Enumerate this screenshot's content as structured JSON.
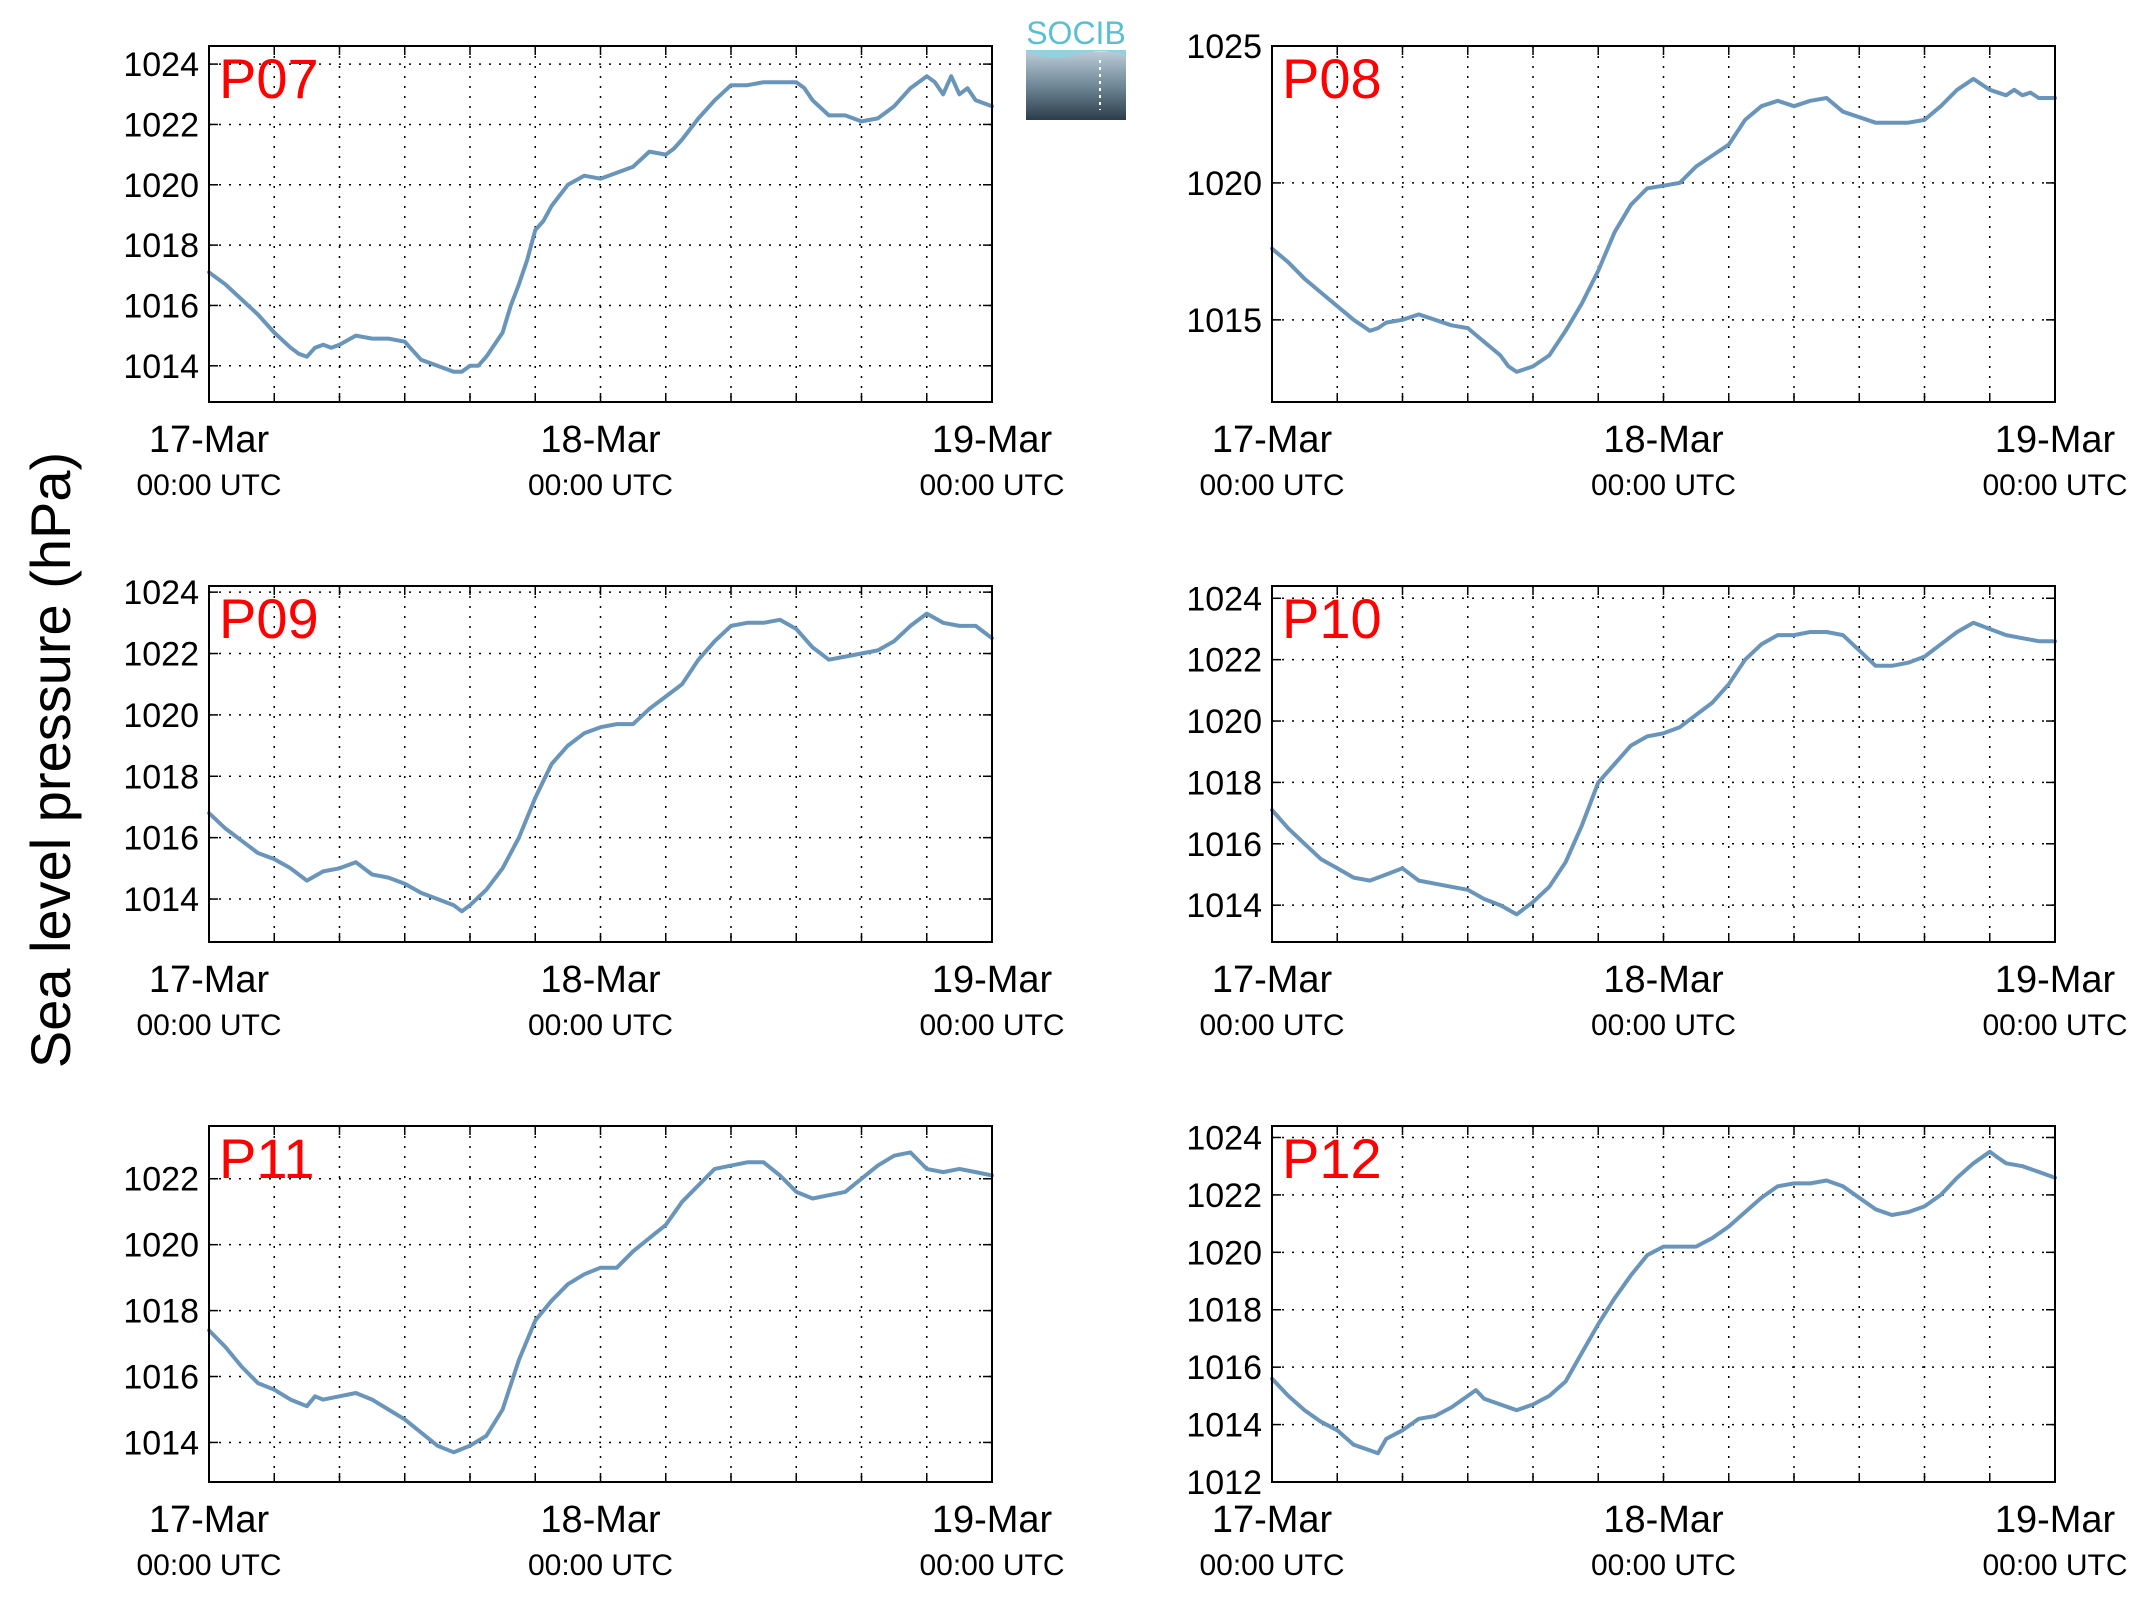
{
  "figure": {
    "ylabel": "Sea level pressure (hPa)",
    "logo_text": "SOCIB",
    "colors": {
      "line": "#6a95bb",
      "panel_title": "#ff0000",
      "axis": "#000000",
      "grid": "#000000",
      "background": "#ffffff"
    }
  },
  "chart_data": [
    {
      "type": "line",
      "title": "P07",
      "x_ticks": [
        {
          "x": 0,
          "date": "17-Mar",
          "time": "00:00 UTC"
        },
        {
          "x": 24,
          "date": "18-Mar",
          "time": "00:00 UTC"
        },
        {
          "x": 48,
          "date": "19-Mar",
          "time": "00:00 UTC"
        }
      ],
      "xlim": [
        0,
        48
      ],
      "ylim": [
        1012.8,
        1024.6
      ],
      "yticks": [
        1014,
        1016,
        1018,
        1020,
        1022,
        1024
      ],
      "grid": true,
      "series": [
        {
          "x": [
            0,
            1,
            2,
            3,
            4,
            5,
            5.5,
            6,
            6.5,
            7,
            7.5,
            8,
            9,
            10,
            11,
            12,
            13,
            14,
            15,
            15.5,
            16,
            16.5,
            17,
            18,
            18.5,
            19,
            19.5,
            20,
            20.5,
            21,
            22,
            23,
            24,
            25,
            26,
            27,
            28,
            28.5,
            29,
            30,
            31,
            32,
            33,
            34,
            35,
            36,
            36.5,
            37,
            38,
            39,
            40,
            41,
            42,
            43,
            44,
            44.5,
            45,
            45.5,
            46,
            46.5,
            47,
            48
          ],
          "y": [
            1017.1,
            1016.7,
            1016.2,
            1015.7,
            1015.1,
            1014.6,
            1014.4,
            1014.3,
            1014.6,
            1014.7,
            1014.6,
            1014.7,
            1015.0,
            1014.9,
            1014.9,
            1014.8,
            1014.2,
            1014.0,
            1013.8,
            1013.8,
            1014.0,
            1014.0,
            1014.3,
            1015.1,
            1016.0,
            1016.7,
            1017.5,
            1018.5,
            1018.8,
            1019.3,
            1020.0,
            1020.3,
            1020.2,
            1020.4,
            1020.6,
            1021.1,
            1021.0,
            1021.2,
            1021.5,
            1022.2,
            1022.8,
            1023.3,
            1023.3,
            1023.4,
            1023.4,
            1023.4,
            1023.2,
            1022.8,
            1022.3,
            1022.3,
            1022.1,
            1022.2,
            1022.6,
            1023.2,
            1023.6,
            1023.4,
            1023.0,
            1023.6,
            1023.0,
            1023.2,
            1022.8,
            1022.6
          ]
        }
      ]
    },
    {
      "type": "line",
      "title": "P08",
      "x_ticks": [
        {
          "x": 0,
          "date": "17-Mar",
          "time": "00:00 UTC"
        },
        {
          "x": 24,
          "date": "18-Mar",
          "time": "00:00 UTC"
        },
        {
          "x": 48,
          "date": "19-Mar",
          "time": "00:00 UTC"
        }
      ],
      "xlim": [
        0,
        48
      ],
      "ylim": [
        1012,
        1025
      ],
      "yticks": [
        1015,
        1020,
        1025
      ],
      "grid": true,
      "series": [
        {
          "x": [
            0,
            1,
            2,
            3,
            4,
            5,
            6,
            6.5,
            7,
            8,
            9,
            10,
            11,
            12,
            13,
            14,
            14.5,
            15,
            16,
            17,
            18,
            18.5,
            19,
            20,
            21,
            22,
            23,
            24,
            25,
            26,
            27,
            28,
            29,
            30,
            31,
            32,
            33,
            34,
            35,
            36,
            37,
            38,
            39,
            40,
            41,
            42,
            43,
            44,
            45,
            45.5,
            46,
            46.5,
            47,
            48
          ],
          "y": [
            1017.6,
            1017.1,
            1016.5,
            1016.0,
            1015.5,
            1015.0,
            1014.6,
            1014.7,
            1014.9,
            1015.0,
            1015.2,
            1015.0,
            1014.8,
            1014.7,
            1014.2,
            1013.7,
            1013.3,
            1013.1,
            1013.3,
            1013.7,
            1014.6,
            1015.1,
            1015.6,
            1016.8,
            1018.2,
            1019.2,
            1019.8,
            1019.9,
            1020.0,
            1020.6,
            1021.0,
            1021.4,
            1022.3,
            1022.8,
            1023.0,
            1022.8,
            1023.0,
            1023.1,
            1022.6,
            1022.4,
            1022.2,
            1022.2,
            1022.2,
            1022.3,
            1022.8,
            1023.4,
            1023.8,
            1023.4,
            1023.2,
            1023.4,
            1023.2,
            1023.3,
            1023.1,
            1023.1
          ]
        }
      ]
    },
    {
      "type": "line",
      "title": "P09",
      "x_ticks": [
        {
          "x": 0,
          "date": "17-Mar",
          "time": "00:00 UTC"
        },
        {
          "x": 24,
          "date": "18-Mar",
          "time": "00:00 UTC"
        },
        {
          "x": 48,
          "date": "19-Mar",
          "time": "00:00 UTC"
        }
      ],
      "xlim": [
        0,
        48
      ],
      "ylim": [
        1012.6,
        1024.2
      ],
      "yticks": [
        1014,
        1016,
        1018,
        1020,
        1022,
        1024
      ],
      "grid": true,
      "series": [
        {
          "x": [
            0,
            1,
            2,
            3,
            4,
            5,
            6,
            7,
            8,
            9,
            10,
            11,
            12,
            13,
            14,
            15,
            15.5,
            16,
            17,
            18,
            19,
            20,
            21,
            22,
            23,
            24,
            25,
            26,
            27,
            28,
            29,
            30,
            31,
            32,
            33,
            34,
            35,
            36,
            37,
            38,
            39,
            40,
            41,
            42,
            43,
            44,
            45,
            46,
            47,
            48
          ],
          "y": [
            1016.8,
            1016.3,
            1015.9,
            1015.5,
            1015.3,
            1015.0,
            1014.6,
            1014.9,
            1015.0,
            1015.2,
            1014.8,
            1014.7,
            1014.5,
            1014.2,
            1014.0,
            1013.8,
            1013.6,
            1013.8,
            1014.3,
            1015.0,
            1016.0,
            1017.3,
            1018.4,
            1019.0,
            1019.4,
            1019.6,
            1019.7,
            1019.7,
            1020.2,
            1020.6,
            1021.0,
            1021.8,
            1022.4,
            1022.9,
            1023.0,
            1023.0,
            1023.1,
            1022.8,
            1022.2,
            1021.8,
            1021.9,
            1022.0,
            1022.1,
            1022.4,
            1022.9,
            1023.3,
            1023.0,
            1022.9,
            1022.9,
            1022.5
          ]
        }
      ]
    },
    {
      "type": "line",
      "title": "P10",
      "x_ticks": [
        {
          "x": 0,
          "date": "17-Mar",
          "time": "00:00 UTC"
        },
        {
          "x": 24,
          "date": "18-Mar",
          "time": "00:00 UTC"
        },
        {
          "x": 48,
          "date": "19-Mar",
          "time": "00:00 UTC"
        }
      ],
      "xlim": [
        0,
        48
      ],
      "ylim": [
        1012.8,
        1024.4
      ],
      "yticks": [
        1014,
        1016,
        1018,
        1020,
        1022,
        1024
      ],
      "grid": true,
      "series": [
        {
          "x": [
            0,
            1,
            2,
            3,
            4,
            5,
            6,
            7,
            8,
            9,
            10,
            11,
            12,
            13,
            14,
            15,
            15.5,
            16,
            17,
            18,
            19,
            20,
            21,
            22,
            23,
            24,
            25,
            26,
            27,
            28,
            29,
            30,
            31,
            32,
            33,
            34,
            35,
            36,
            37,
            38,
            39,
            40,
            41,
            42,
            43,
            44,
            45,
            46,
            47,
            48
          ],
          "y": [
            1017.1,
            1016.5,
            1016.0,
            1015.5,
            1015.2,
            1014.9,
            1014.8,
            1015.0,
            1015.2,
            1014.8,
            1014.7,
            1014.6,
            1014.5,
            1014.2,
            1014.0,
            1013.7,
            1013.9,
            1014.1,
            1014.6,
            1015.4,
            1016.6,
            1018.0,
            1018.6,
            1019.2,
            1019.5,
            1019.6,
            1019.8,
            1020.2,
            1020.6,
            1021.2,
            1022.0,
            1022.5,
            1022.8,
            1022.8,
            1022.9,
            1022.9,
            1022.8,
            1022.3,
            1021.8,
            1021.8,
            1021.9,
            1022.1,
            1022.5,
            1022.9,
            1023.2,
            1023.0,
            1022.8,
            1022.7,
            1022.6,
            1022.6
          ]
        }
      ]
    },
    {
      "type": "line",
      "title": "P11",
      "x_ticks": [
        {
          "x": 0,
          "date": "17-Mar",
          "time": "00:00 UTC"
        },
        {
          "x": 24,
          "date": "18-Mar",
          "time": "00:00 UTC"
        },
        {
          "x": 48,
          "date": "19-Mar",
          "time": "00:00 UTC"
        }
      ],
      "xlim": [
        0,
        48
      ],
      "ylim": [
        1012.8,
        1023.6
      ],
      "yticks": [
        1014,
        1016,
        1018,
        1020,
        1022
      ],
      "grid": true,
      "series": [
        {
          "x": [
            0,
            1,
            2,
            3,
            4,
            5,
            6,
            6.5,
            7,
            8,
            9,
            10,
            11,
            12,
            13,
            14,
            15,
            15.5,
            16,
            17,
            18,
            19,
            20,
            21,
            22,
            23,
            24,
            25,
            26,
            27,
            28,
            29,
            30,
            31,
            32,
            33,
            34,
            35,
            36,
            37,
            38,
            39,
            40,
            41,
            42,
            43,
            44,
            45,
            46,
            47,
            48
          ],
          "y": [
            1017.4,
            1016.9,
            1016.3,
            1015.8,
            1015.6,
            1015.3,
            1015.1,
            1015.4,
            1015.3,
            1015.4,
            1015.5,
            1015.3,
            1015.0,
            1014.7,
            1014.3,
            1013.9,
            1013.7,
            1013.8,
            1013.9,
            1014.2,
            1015.0,
            1016.5,
            1017.7,
            1018.3,
            1018.8,
            1019.1,
            1019.3,
            1019.3,
            1019.8,
            1020.2,
            1020.6,
            1021.3,
            1021.8,
            1022.3,
            1022.4,
            1022.5,
            1022.5,
            1022.1,
            1021.6,
            1021.4,
            1021.5,
            1021.6,
            1022.0,
            1022.4,
            1022.7,
            1022.8,
            1022.3,
            1022.2,
            1022.3,
            1022.2,
            1022.1
          ]
        }
      ]
    },
    {
      "type": "line",
      "title": "P12",
      "x_ticks": [
        {
          "x": 0,
          "date": "17-Mar",
          "time": "00:00 UTC"
        },
        {
          "x": 24,
          "date": "18-Mar",
          "time": "00:00 UTC"
        },
        {
          "x": 48,
          "date": "19-Mar",
          "time": "00:00 UTC"
        }
      ],
      "xlim": [
        0,
        48
      ],
      "ylim": [
        1012,
        1024.4
      ],
      "yticks": [
        1012,
        1014,
        1016,
        1018,
        1020,
        1022,
        1024
      ],
      "grid": true,
      "series": [
        {
          "x": [
            0,
            1,
            2,
            3,
            4,
            5,
            6,
            6.5,
            7,
            8,
            9,
            10,
            11,
            12,
            12.5,
            13,
            14,
            15,
            16,
            17,
            18,
            19,
            20,
            21,
            22,
            23,
            24,
            25,
            26,
            27,
            28,
            29,
            30,
            31,
            32,
            33,
            34,
            35,
            36,
            37,
            38,
            39,
            40,
            41,
            42,
            43,
            44,
            44.5,
            45,
            46,
            47,
            48
          ],
          "y": [
            1015.6,
            1015.0,
            1014.5,
            1014.1,
            1013.8,
            1013.3,
            1013.1,
            1013.0,
            1013.5,
            1013.8,
            1014.2,
            1014.3,
            1014.6,
            1015.0,
            1015.2,
            1014.9,
            1014.7,
            1014.5,
            1014.7,
            1015.0,
            1015.5,
            1016.5,
            1017.5,
            1018.4,
            1019.2,
            1019.9,
            1020.2,
            1020.2,
            1020.2,
            1020.5,
            1020.9,
            1021.4,
            1021.9,
            1022.3,
            1022.4,
            1022.4,
            1022.5,
            1022.3,
            1021.9,
            1021.5,
            1021.3,
            1021.4,
            1021.6,
            1022.0,
            1022.6,
            1023.1,
            1023.5,
            1023.3,
            1023.1,
            1023.0,
            1022.8,
            1022.6
          ]
        }
      ]
    }
  ]
}
